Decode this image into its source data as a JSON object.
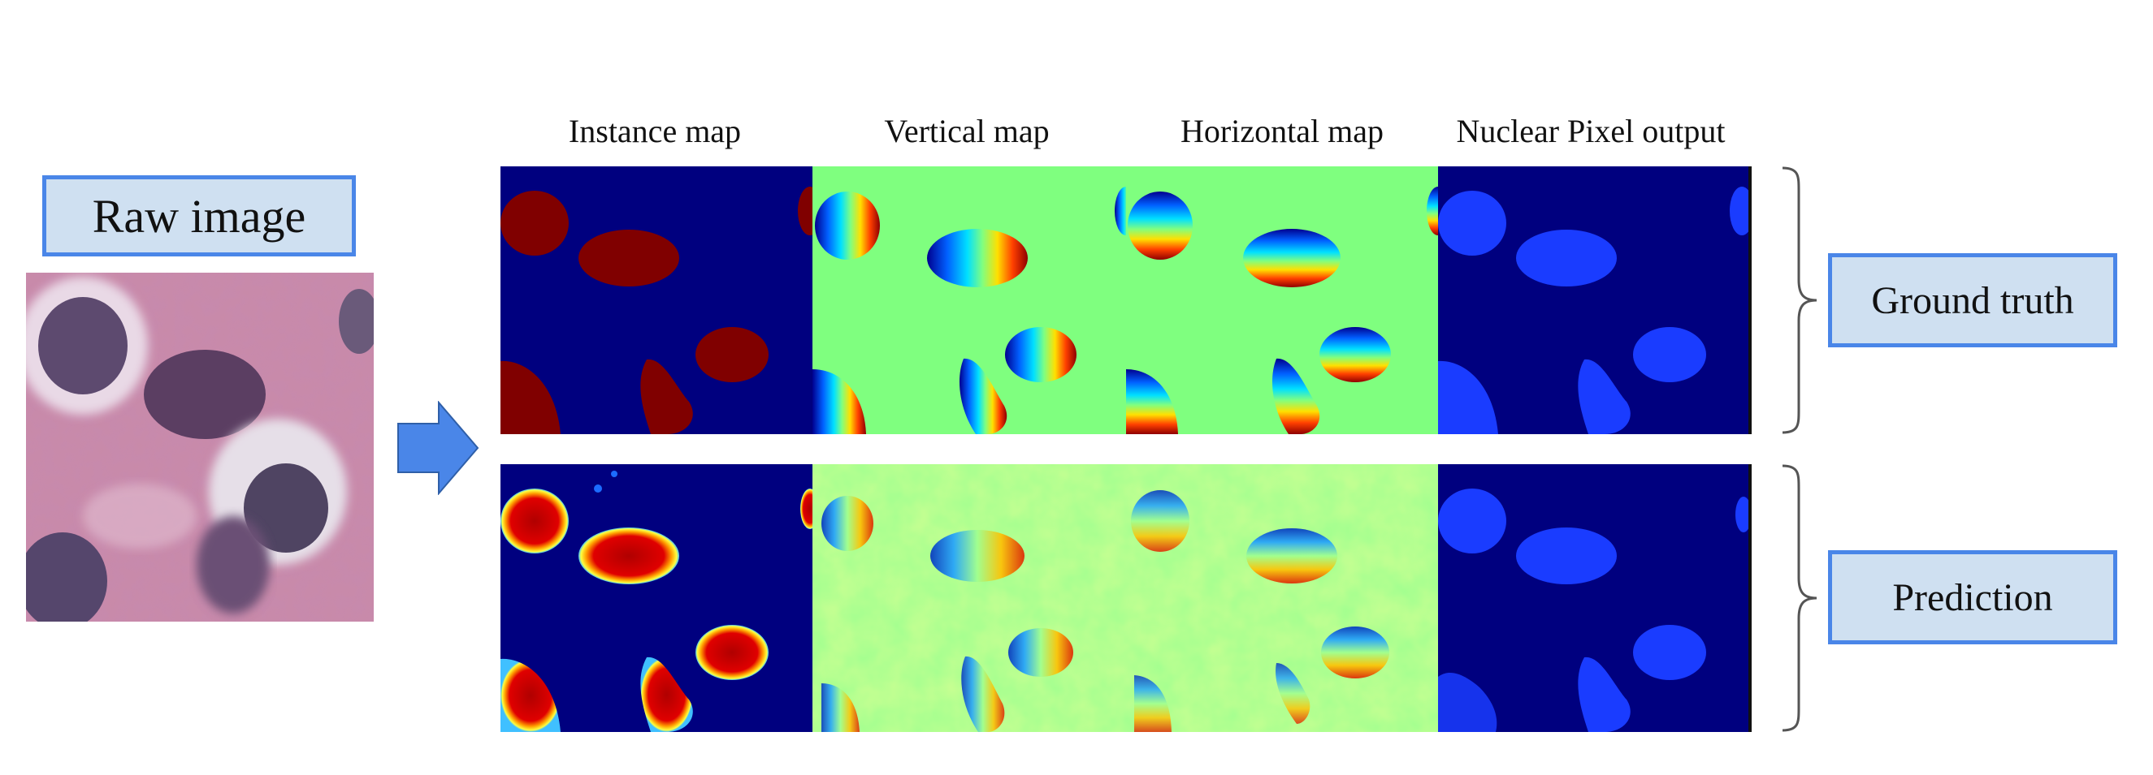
{
  "raw_label": "Raw image",
  "columns": [
    "Instance map",
    "Vertical map",
    "Horizontal map",
    "Nuclear Pixel output"
  ],
  "rows": [
    "Ground truth",
    "Prediction"
  ],
  "colors": {
    "box_fill": "#cfe0f1",
    "box_border": "#4a86e8",
    "arrow": "#4a86e8",
    "map_background_dark": "#00007f",
    "map_background_green": "#7fff7f",
    "instance_fill": "#800000",
    "nuclear_fill": "#1a3cff"
  }
}
